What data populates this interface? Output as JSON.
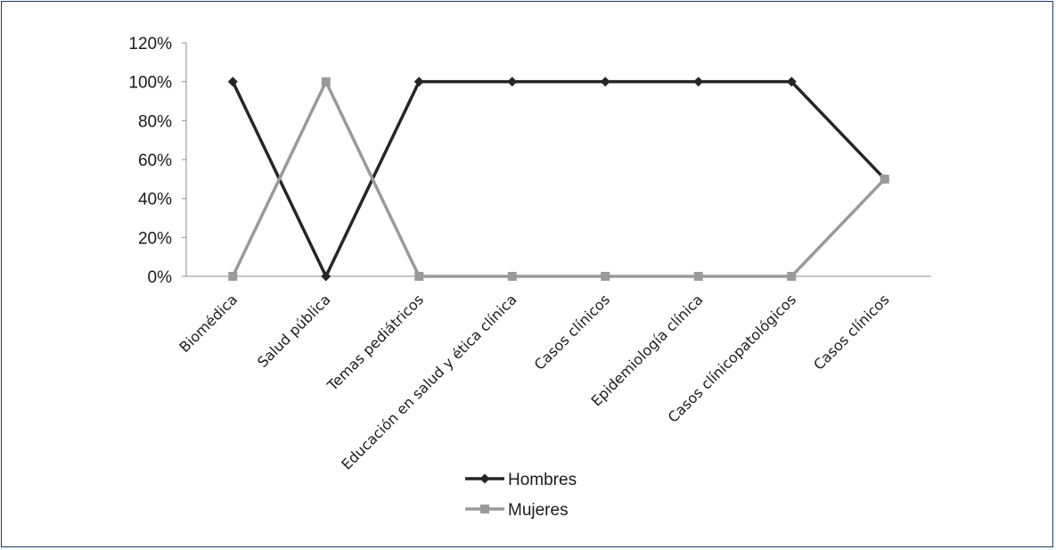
{
  "chart_data": {
    "type": "line",
    "categories": [
      "Biomédica",
      "Salud pública",
      "Temas pediátricos",
      "Educación en salud y ética clínica",
      "Casos clínicos",
      "Epidemiología clínica",
      "Casos clínicopatológicos",
      "Casos clínicos"
    ],
    "series": [
      {
        "name": "Hombres",
        "values": [
          100,
          0,
          100,
          100,
          100,
          100,
          100,
          50
        ],
        "color": "#262626",
        "marker": "diamond"
      },
      {
        "name": "Mujeres",
        "values": [
          0,
          100,
          0,
          0,
          0,
          0,
          0,
          50
        ],
        "color": "#9a9a9a",
        "marker": "square"
      }
    ],
    "y_ticks": [
      "0%",
      "20%",
      "40%",
      "60%",
      "80%",
      "100%",
      "120%"
    ],
    "ylim": [
      0,
      120
    ],
    "grid": false,
    "legend_position": "bottom"
  }
}
